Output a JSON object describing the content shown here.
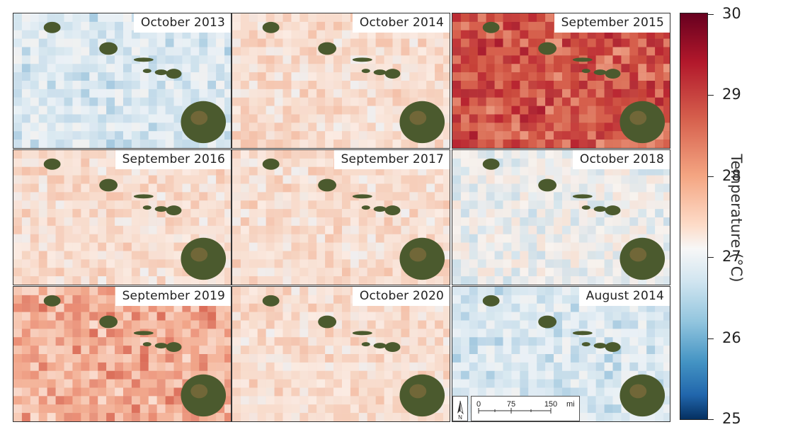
{
  "panels": [
    {
      "label": "October 2013",
      "anomaly": "cool"
    },
    {
      "label": "October 2014",
      "anomaly": "warm-light"
    },
    {
      "label": "September 2015",
      "anomaly": "hot"
    },
    {
      "label": "September 2016",
      "anomaly": "warm-light"
    },
    {
      "label": "September 2017",
      "anomaly": "warm-light"
    },
    {
      "label": "October 2018",
      "anomaly": "neutral"
    },
    {
      "label": "September 2019",
      "anomaly": "warm"
    },
    {
      "label": "October 2020",
      "anomaly": "warm-light"
    },
    {
      "label": "August 2014",
      "anomaly": "cool"
    }
  ],
  "colorbar": {
    "title": "Temperature (°C)",
    "min": 25,
    "max": 30,
    "ticks": [
      "30",
      "29",
      "28",
      "27",
      "26",
      "25"
    ],
    "colors": [
      "#67001f",
      "#b2182b",
      "#d6604d",
      "#f4a582",
      "#fddbc7",
      "#f7f7f7",
      "#d1e5f0",
      "#92c5de",
      "#4393c3",
      "#2166ac",
      "#053061"
    ]
  },
  "scalebar": {
    "labels": [
      "0",
      "75",
      "150"
    ],
    "unit": "mi",
    "north_label": "N"
  },
  "colors": {
    "land": "#4b5a2e",
    "land_highlight": "#8a7040",
    "border": "#333333"
  }
}
